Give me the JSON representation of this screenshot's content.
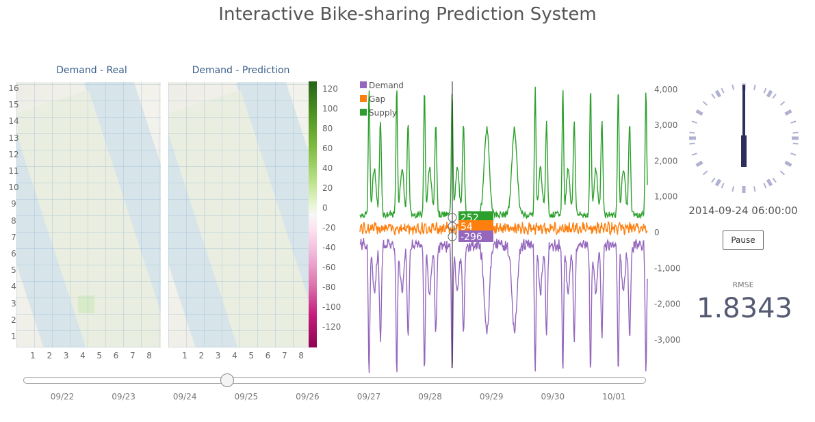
{
  "title": "Interactive Bike-sharing Prediction System",
  "maps": {
    "real_label": "Demand - Real",
    "prediction_label": "Demand - Prediction",
    "row_ticks": [
      "16",
      "15",
      "14",
      "13",
      "12",
      "11",
      "10",
      "9",
      "8",
      "7",
      "6",
      "5",
      "4",
      "3",
      "2",
      "1"
    ],
    "col_ticks": [
      "1",
      "2",
      "3",
      "4",
      "5",
      "6",
      "7",
      "8"
    ]
  },
  "colorbar": {
    "ticks": [
      "120",
      "100",
      "80",
      "60",
      "40",
      "20",
      "0",
      "-20",
      "-40",
      "-60",
      "-80",
      "-100",
      "-120"
    ],
    "colors": [
      "#276419",
      "#7fbc41",
      "#f7f7f7",
      "#de77ae",
      "#8e0152"
    ]
  },
  "chart_data": {
    "type": "line",
    "legend_placement": "top-left",
    "series": [
      {
        "name": "Demand",
        "color": "#9467bd"
      },
      {
        "name": "Gap",
        "color": "#ff7f0e"
      },
      {
        "name": "Supply",
        "color": "#2ca02c"
      }
    ],
    "x_range": [
      "09/21",
      "10/01"
    ],
    "ylim": [
      -4000,
      4000
    ],
    "y_ticks": [
      "4,000",
      "3,000",
      "2,000",
      "1,000",
      "0",
      "-1,000",
      "-2,000",
      "-3,000"
    ],
    "hover_values": [
      {
        "series": "Supply",
        "label": "252",
        "color": "#2ca02c"
      },
      {
        "series": "Gap",
        "label": "54",
        "color": "#ff7f0e"
      },
      {
        "series": "Demand",
        "label": "-296",
        "color": "#9467bd"
      }
    ]
  },
  "clock": {
    "datetime": "2014-09-24 06:00:00"
  },
  "controls": {
    "pause_label": "Pause"
  },
  "rmse": {
    "label": "RMSE",
    "value": "1.8343"
  },
  "timeline": {
    "dates": [
      "09/22",
      "09/23",
      "09/24",
      "09/25",
      "09/26",
      "09/27",
      "09/28",
      "09/29",
      "09/30",
      "10/01"
    ],
    "position": 0.33
  }
}
